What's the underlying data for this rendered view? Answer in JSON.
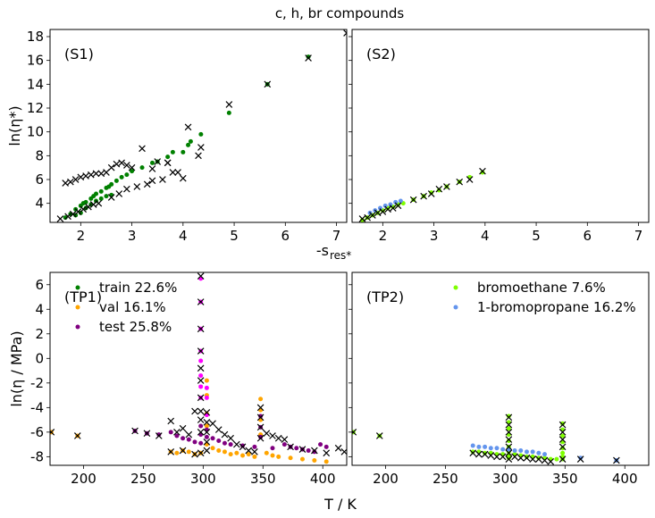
{
  "figure": {
    "title": "c, h, br compounds"
  },
  "colors": {
    "train": "#008000",
    "val": "#ffa500",
    "test": "#800080",
    "bromoethane": "#7fff00",
    "propane": "#6495ed",
    "pred": "#ff00ff",
    "cross": "#000000"
  },
  "chart_data": [
    {
      "id": "S1",
      "type": "scatter",
      "panel_label": "(S1)",
      "xlabel": "",
      "ylabel": "ln(η*)",
      "xlim": [
        1.4,
        7.2
      ],
      "ylim": [
        2.4,
        18.6
      ],
      "xticks": [
        2,
        3,
        4,
        5,
        6,
        7
      ],
      "yticks": [
        4,
        6,
        8,
        10,
        12,
        14,
        16,
        18
      ],
      "series": [
        {
          "key": "train",
          "marker": "dot",
          "x": [
            1.7,
            1.8,
            1.9,
            2.0,
            2.05,
            2.1,
            2.2,
            2.25,
            2.3,
            2.4,
            2.5,
            2.55,
            2.6,
            2.7,
            2.8,
            2.9,
            3.0,
            3.2,
            3.4,
            3.5,
            3.7,
            3.8,
            4.0,
            4.1,
            4.15,
            4.35,
            1.9,
            2.0,
            2.1,
            2.2,
            2.3,
            2.4,
            2.5,
            2.6,
            4.9,
            5.65,
            6.45
          ],
          "y": [
            2.8,
            3.1,
            3.5,
            3.8,
            4.0,
            4.1,
            4.4,
            4.6,
            4.8,
            5.0,
            5.3,
            5.4,
            5.6,
            5.9,
            6.2,
            6.4,
            6.7,
            7.0,
            7.4,
            7.5,
            7.9,
            8.3,
            8.3,
            8.9,
            9.2,
            9.8,
            3.0,
            3.2,
            3.6,
            3.9,
            4.2,
            4.4,
            4.6,
            4.7,
            11.6,
            14.0,
            16.3
          ]
        },
        {
          "key": "cross",
          "marker": "x",
          "x": [
            1.6,
            1.75,
            1.85,
            1.95,
            2.05,
            2.15,
            2.25,
            2.35,
            1.7,
            1.8,
            1.9,
            2.0,
            2.1,
            2.2,
            2.3,
            2.4,
            2.5,
            2.6,
            2.7,
            2.8,
            2.9,
            3.0,
            3.2,
            3.4,
            3.5,
            3.7,
            3.8,
            4.0,
            4.1,
            4.35,
            2.6,
            2.75,
            2.9,
            3.1,
            3.3,
            3.4,
            3.6,
            3.7,
            3.9,
            4.3,
            4.9,
            5.65,
            6.45,
            7.2
          ],
          "y": [
            2.7,
            2.9,
            3.1,
            3.3,
            3.5,
            3.7,
            3.9,
            4.0,
            5.7,
            5.8,
            6.0,
            6.2,
            6.3,
            6.4,
            6.5,
            6.5,
            6.6,
            7.0,
            7.3,
            7.4,
            7.2,
            7.0,
            8.6,
            6.9,
            7.5,
            7.4,
            6.6,
            6.1,
            10.4,
            8.7,
            4.5,
            4.8,
            5.2,
            5.4,
            5.6,
            5.9,
            6.0,
            7.4,
            6.6,
            8.0,
            12.3,
            14.0,
            16.2,
            18.3
          ]
        }
      ]
    },
    {
      "id": "S2",
      "type": "scatter",
      "panel_label": "(S2)",
      "xlabel": "-s_res*",
      "ylabel": "",
      "xlim": [
        1.4,
        7.2
      ],
      "ylim": [
        2.4,
        18.6
      ],
      "xticks": [
        2,
        3,
        4,
        5,
        6,
        7
      ],
      "yticks": [],
      "series": [
        {
          "key": "bromoethane",
          "marker": "dot",
          "x": [
            1.6,
            1.7,
            1.8,
            1.9,
            2.0,
            2.1,
            2.2,
            2.3,
            2.4,
            2.6,
            2.8,
            2.95,
            3.1,
            3.25,
            3.5,
            3.7,
            3.95
          ],
          "y": [
            2.6,
            2.8,
            3.0,
            3.2,
            3.4,
            3.6,
            3.7,
            3.9,
            4.0,
            4.3,
            4.6,
            4.9,
            5.1,
            5.4,
            5.8,
            6.2,
            6.6
          ]
        },
        {
          "key": "propane",
          "marker": "dot",
          "x": [
            1.75,
            1.85,
            1.95,
            2.05,
            2.15,
            2.25,
            2.35
          ],
          "y": [
            3.2,
            3.4,
            3.6,
            3.8,
            3.9,
            4.1,
            4.2
          ]
        },
        {
          "key": "cross",
          "marker": "x",
          "x": [
            1.6,
            1.7,
            1.8,
            1.9,
            2.0,
            2.1,
            2.2,
            2.3,
            2.6,
            2.8,
            2.95,
            3.1,
            3.25,
            3.5,
            3.7,
            3.95
          ],
          "y": [
            2.7,
            2.8,
            3.0,
            3.2,
            3.3,
            3.5,
            3.6,
            3.8,
            4.3,
            4.6,
            4.8,
            5.2,
            5.4,
            5.8,
            6.0,
            6.7
          ]
        }
      ]
    },
    {
      "id": "TP1",
      "type": "scatter",
      "panel_label": "(TP1)",
      "xlabel": "",
      "ylabel": "ln(η / MPa)",
      "xlim": [
        172,
        420
      ],
      "ylim": [
        -8.7,
        7.0
      ],
      "xticks": [
        200,
        250,
        300,
        350,
        400
      ],
      "yticks": [
        -8,
        -6,
        -4,
        -2,
        0,
        2,
        4,
        6
      ],
      "legend": {
        "position": "upper-left",
        "entries": [
          {
            "key": "train",
            "label": "train 22.6%"
          },
          {
            "key": "val",
            "label": "val 16.1%"
          },
          {
            "key": "test",
            "label": "test 25.8%"
          }
        ]
      },
      "series": [
        {
          "key": "val",
          "marker": "dot",
          "x": [
            173,
            195,
            273,
            278,
            283,
            288,
            293,
            298,
            303,
            303,
            303,
            303,
            303,
            308,
            313,
            318,
            323,
            328,
            333,
            338,
            343,
            348,
            348,
            348,
            348,
            353,
            358,
            363,
            373,
            383,
            393,
            403
          ],
          "y": [
            -6.0,
            -6.3,
            -7.6,
            -7.7,
            -7.5,
            -7.6,
            -7.8,
            -7.7,
            -7.0,
            -5.5,
            -4.5,
            -3.0,
            -1.8,
            -7.3,
            -7.5,
            -7.6,
            -7.8,
            -7.7,
            -7.9,
            -7.8,
            -8.0,
            -6.2,
            -5.0,
            -4.2,
            -3.3,
            -7.7,
            -7.9,
            -8.0,
            -8.1,
            -8.2,
            -8.3,
            -8.4
          ]
        },
        {
          "key": "test",
          "marker": "dot",
          "x": [
            243,
            253,
            263,
            273,
            278,
            283,
            288,
            293,
            298,
            298,
            298,
            303,
            303,
            308,
            313,
            318,
            323,
            333,
            343,
            348,
            348,
            348,
            358,
            368,
            373,
            378,
            383,
            388,
            393,
            398,
            403
          ],
          "y": [
            -5.9,
            -6.1,
            -6.2,
            -6.0,
            -6.3,
            -6.5,
            -6.6,
            -6.8,
            -6.9,
            -6.2,
            -5.5,
            -6.4,
            -5.8,
            -6.5,
            -6.7,
            -6.9,
            -7.0,
            -7.1,
            -7.2,
            -6.4,
            -5.6,
            -4.7,
            -7.3,
            -7.0,
            -7.2,
            -7.3,
            -7.4,
            -7.5,
            -7.6,
            -7.0,
            -7.2
          ]
        },
        {
          "key": "pred",
          "marker": "dot",
          "x": [
            298,
            298,
            298,
            298,
            298,
            298,
            298,
            298,
            303,
            303,
            303
          ],
          "y": [
            6.5,
            4.6,
            2.4,
            0.6,
            -0.2,
            -1.4,
            -2.3,
            -3.2,
            -2.4,
            -3.2,
            -4.6
          ]
        },
        {
          "key": "cross",
          "marker": "x",
          "x": [
            173,
            195,
            243,
            253,
            263,
            273,
            273,
            278,
            283,
            283,
            288,
            293,
            293,
            298,
            298,
            298,
            298,
            298,
            298,
            298,
            298,
            298,
            298,
            298,
            303,
            303,
            303,
            303,
            303,
            308,
            313,
            318,
            323,
            328,
            333,
            338,
            343,
            348,
            348,
            348,
            348,
            353,
            358,
            363,
            368,
            373,
            383,
            393,
            403,
            413,
            418
          ],
          "y": [
            -6.0,
            -6.3,
            -5.9,
            -6.1,
            -6.3,
            -5.1,
            -7.6,
            -6.0,
            -5.7,
            -7.5,
            -6.2,
            -4.3,
            -7.8,
            6.7,
            4.6,
            2.4,
            0.6,
            -0.8,
            -1.8,
            -3.2,
            -4.3,
            -5.0,
            -6.0,
            -7.7,
            -4.4,
            -5.2,
            -6.0,
            -6.8,
            -7.5,
            -5.3,
            -5.8,
            -6.2,
            -6.5,
            -7.0,
            -7.2,
            -7.5,
            -7.6,
            -4.0,
            -4.8,
            -5.6,
            -6.5,
            -6.1,
            -6.3,
            -6.5,
            -6.6,
            -7.2,
            -7.4,
            -7.5,
            -7.7,
            -7.3,
            -7.6
          ]
        }
      ]
    },
    {
      "id": "TP2",
      "type": "scatter",
      "panel_label": "(TP2)",
      "xlabel": "",
      "ylabel": "",
      "xlim": [
        172,
        420
      ],
      "ylim": [
        -8.7,
        7.0
      ],
      "xticks": [
        200,
        250,
        300,
        350,
        400
      ],
      "yticks": [],
      "legend": {
        "position": "upper-right",
        "entries": [
          {
            "key": "bromoethane",
            "label": "bromoethane 7.6%"
          },
          {
            "key": "propane",
            "label": "1-bromopropane 16.2%"
          }
        ]
      },
      "series": [
        {
          "key": "bromoethane",
          "marker": "dot",
          "x": [
            173,
            195,
            273,
            278,
            283,
            288,
            293,
            298,
            303,
            303,
            303,
            303,
            303,
            303,
            303,
            303,
            303,
            308,
            313,
            318,
            323,
            328,
            333,
            338,
            343,
            348,
            348,
            348,
            348,
            348,
            348,
            348,
            348
          ],
          "y": [
            -6.0,
            -6.3,
            -7.6,
            -7.6,
            -7.7,
            -7.7,
            -7.8,
            -7.8,
            -4.7,
            -5.2,
            -5.7,
            -6.2,
            -6.7,
            -7.2,
            -7.6,
            -7.9,
            -8.1,
            -7.8,
            -7.9,
            -8.0,
            -8.0,
            -8.1,
            -8.1,
            -8.2,
            -8.2,
            -5.3,
            -5.8,
            -6.3,
            -6.8,
            -7.3,
            -7.7,
            -8.0,
            -8.2
          ]
        },
        {
          "key": "propane",
          "marker": "dot",
          "x": [
            273,
            278,
            283,
            288,
            293,
            298,
            303,
            308,
            313,
            318,
            323,
            328,
            333,
            363,
            393
          ],
          "y": [
            -7.1,
            -7.2,
            -7.2,
            -7.3,
            -7.3,
            -7.4,
            -7.4,
            -7.5,
            -7.5,
            -7.6,
            -7.6,
            -7.7,
            -7.8,
            -8.1,
            -8.3
          ]
        },
        {
          "key": "cross",
          "marker": "x",
          "x": [
            173,
            195,
            273,
            278,
            283,
            288,
            293,
            298,
            303,
            303,
            303,
            303,
            303,
            303,
            303,
            308,
            313,
            318,
            323,
            328,
            333,
            338,
            348,
            348,
            348,
            348,
            348,
            363,
            393
          ],
          "y": [
            -6.0,
            -6.3,
            -7.7,
            -7.8,
            -7.8,
            -7.9,
            -8.0,
            -8.0,
            -4.8,
            -5.4,
            -6.0,
            -6.6,
            -7.2,
            -7.7,
            -8.2,
            -8.0,
            -8.1,
            -8.1,
            -8.2,
            -8.2,
            -8.3,
            -8.4,
            -5.4,
            -6.0,
            -6.6,
            -7.2,
            -8.2,
            -8.2,
            -8.3
          ]
        }
      ]
    }
  ],
  "shared_axis_titles": {
    "bottom_x": "T / K"
  }
}
